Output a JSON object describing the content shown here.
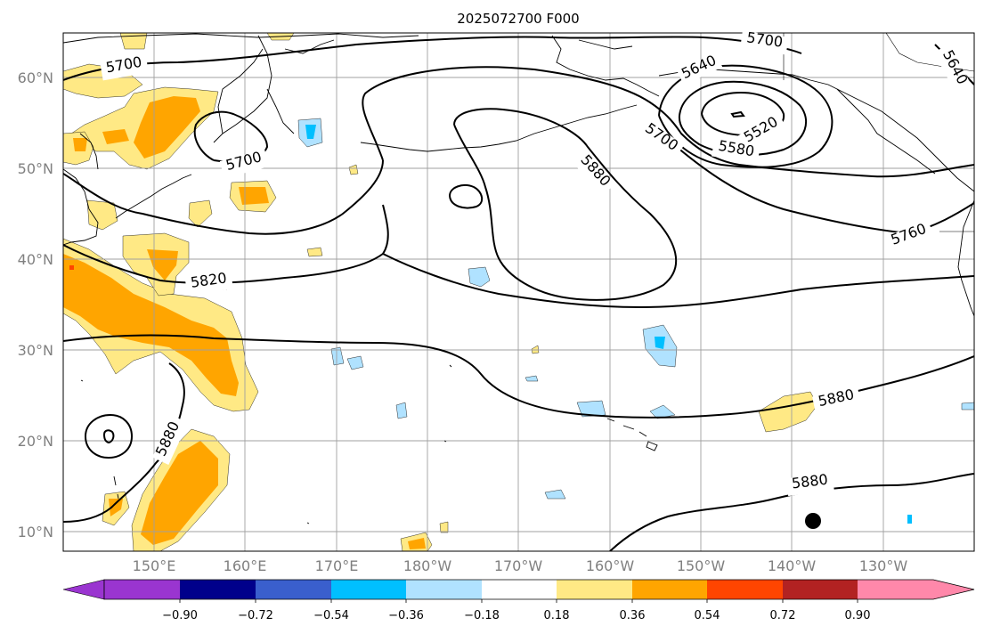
{
  "title": "2025072700 F000",
  "lat_labels": [
    "60°N",
    "50°N",
    "40°N",
    "30°N",
    "20°N",
    "10°N"
  ],
  "lon_labels": [
    "150°E",
    "160°E",
    "170°E",
    "180°W",
    "170°W",
    "160°W",
    "150°W",
    "140°W",
    "130°W"
  ],
  "contour_labels": [
    "5700",
    "5700",
    "5700",
    "5640",
    "5520",
    "5580",
    "5640",
    "5700",
    "5880",
    "5760",
    "5820",
    "5880",
    "5880",
    "5880"
  ],
  "colorbar": {
    "tick_labels": [
      "−0.90",
      "−0.72",
      "−0.54",
      "−0.36",
      "−0.18",
      "0.18",
      "0.36",
      "0.54",
      "0.72",
      "0.90"
    ],
    "colors": [
      "#9a35d0",
      "#00008b",
      "#3a5fcd",
      "#00bfff",
      "#b0e2ff",
      "#ffffff",
      "#ffe985",
      "#ffa500",
      "#ff4500",
      "#b22222",
      "#ff88aa"
    ]
  },
  "colors": {
    "shade_light_yellow": "#ffe985",
    "shade_orange": "#ffa500",
    "shade_red": "#ff4500",
    "shade_light_blue": "#b0e2ff",
    "shade_blue": "#00bfff"
  }
}
